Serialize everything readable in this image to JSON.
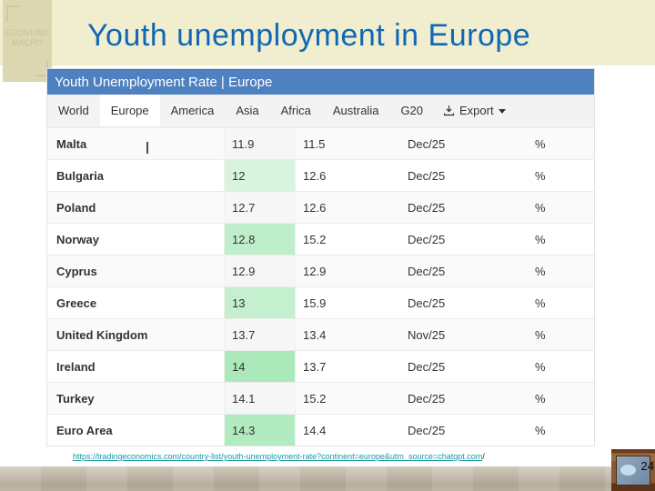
{
  "slide": {
    "title": "Youth unemployment in Europe",
    "title_color": "#0f68b3",
    "band_color": "#f1eecf",
    "logo": {
      "line1": "ECON1050:",
      "line2": "MACRO"
    },
    "source_link": {
      "text": "https://tradingeconomics.com/country-list/youth-unemployment-rate?continent=europe&utm_source=chatgpt.com",
      "suffix": "/"
    },
    "page_number": "24"
  },
  "widget": {
    "header": {
      "title": "Youth Unemployment Rate | Europe",
      "bg_color": "#4e81c0"
    },
    "tabs": [
      "World",
      "Europe",
      "America",
      "Asia",
      "Africa",
      "Australia",
      "G20"
    ],
    "active_tab": "Europe",
    "export": {
      "label": "Export",
      "icon": "download-icon",
      "caret": "caret-down-icon"
    },
    "table": {
      "columns": [
        "country",
        "last",
        "previous",
        "reference",
        "unit"
      ],
      "default_last_bg": "#f6f6f6",
      "rows": [
        {
          "country": "Malta",
          "last": "11.9",
          "previous": "11.5",
          "reference": "Dec/25",
          "unit": "%",
          "last_bg": null
        },
        {
          "country": "Bulgaria",
          "last": "12",
          "previous": "12.6",
          "reference": "Dec/25",
          "unit": "%",
          "last_bg": "#d8f3de"
        },
        {
          "country": "Poland",
          "last": "12.7",
          "previous": "12.6",
          "reference": "Dec/25",
          "unit": "%",
          "last_bg": null
        },
        {
          "country": "Norway",
          "last": "12.8",
          "previous": "15.2",
          "reference": "Dec/25",
          "unit": "%",
          "last_bg": "#bfeeca"
        },
        {
          "country": "Cyprus",
          "last": "12.9",
          "previous": "12.9",
          "reference": "Dec/25",
          "unit": "%",
          "last_bg": null
        },
        {
          "country": "Greece",
          "last": "13",
          "previous": "15.9",
          "reference": "Dec/25",
          "unit": "%",
          "last_bg": "#c4f0cf"
        },
        {
          "country": "United Kingdom",
          "last": "13.7",
          "previous": "13.4",
          "reference": "Nov/25",
          "unit": "%",
          "last_bg": null
        },
        {
          "country": "Ireland",
          "last": "14",
          "previous": "13.7",
          "reference": "Dec/25",
          "unit": "%",
          "last_bg": "#abe9ba"
        },
        {
          "country": "Turkey",
          "last": "14.1",
          "previous": "15.2",
          "reference": "Dec/25",
          "unit": "%",
          "last_bg": null
        },
        {
          "country": "Euro Area",
          "last": "14.3",
          "previous": "14.4",
          "reference": "Dec/25",
          "unit": "%",
          "last_bg": "#b2ebc0"
        }
      ]
    }
  }
}
